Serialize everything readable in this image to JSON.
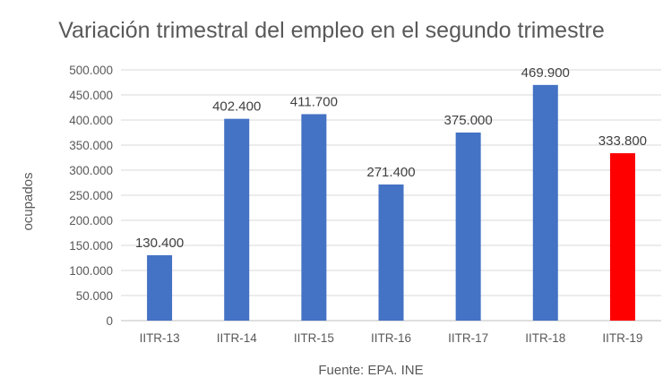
{
  "chart_data": {
    "type": "bar",
    "title": "Variación trimestral del empleo en el segundo trimestre",
    "xlabel": "",
    "ylabel": "ocupados",
    "source": "Fuente: EPA. INE",
    "categories": [
      "IITR-13",
      "IITR-14",
      "IITR-15",
      "IITR-16",
      "IITR-17",
      "IITR-18",
      "IITR-19"
    ],
    "values": [
      130400,
      402400,
      411700,
      271400,
      375000,
      469900,
      333800
    ],
    "value_labels": [
      "130.400",
      "402.400",
      "411.700",
      "271.400",
      "375.000",
      "469.900",
      "333.800"
    ],
    "yticks": [
      "0",
      "50.000",
      "100.000",
      "150.000",
      "200.000",
      "250.000",
      "300.000",
      "350.000",
      "400.000",
      "450.000",
      "500.000"
    ],
    "ylim": [
      0,
      500000
    ],
    "grid": true,
    "legend": "none",
    "colors": {
      "default": "#4472c4",
      "highlight": "#ff0000",
      "highlight_index": 6,
      "grid": "#d9d9d9"
    }
  }
}
